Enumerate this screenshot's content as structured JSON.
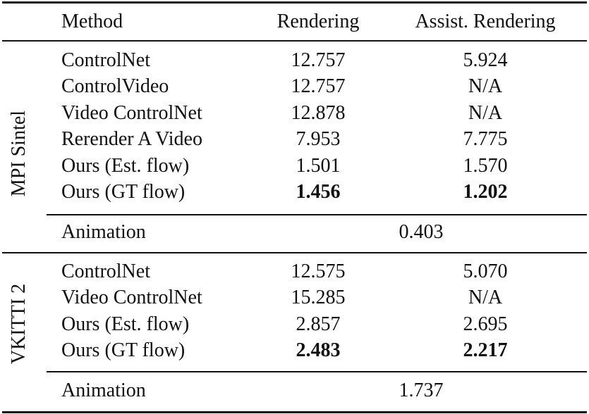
{
  "header": {
    "method": "Method",
    "rendering": "Rendering",
    "assist": "Assist. Rendering"
  },
  "groups": [
    {
      "label": "MPI Sintel",
      "rows": [
        {
          "method": "ControlNet",
          "rendering": "12.757",
          "assist": "5.924",
          "bold": false
        },
        {
          "method": "ControlVideo",
          "rendering": "12.757",
          "assist": "N/A",
          "bold": false
        },
        {
          "method": "Video ControlNet",
          "rendering": "12.878",
          "assist": "N/A",
          "bold": false
        },
        {
          "method": "Rerender A Video",
          "rendering": "7.953",
          "assist": "7.775",
          "bold": false
        },
        {
          "method": "Ours (Est. flow)",
          "rendering": "1.501",
          "assist": "1.570",
          "bold": false
        },
        {
          "method": "Ours (GT flow)",
          "rendering": "1.456",
          "assist": "1.202",
          "bold": true
        }
      ],
      "animation": {
        "label": "Animation",
        "value": "0.403"
      }
    },
    {
      "label": "VKITTI 2",
      "rows": [
        {
          "method": "ControlNet",
          "rendering": "12.575",
          "assist": "5.070",
          "bold": false
        },
        {
          "method": "Video ControlNet",
          "rendering": "15.285",
          "assist": "N/A",
          "bold": false
        },
        {
          "method": "Ours (Est. flow)",
          "rendering": "2.857",
          "assist": "2.695",
          "bold": false
        },
        {
          "method": "Ours (GT flow)",
          "rendering": "2.483",
          "assist": "2.217",
          "bold": true
        }
      ],
      "animation": {
        "label": "Animation",
        "value": "1.737"
      }
    }
  ]
}
